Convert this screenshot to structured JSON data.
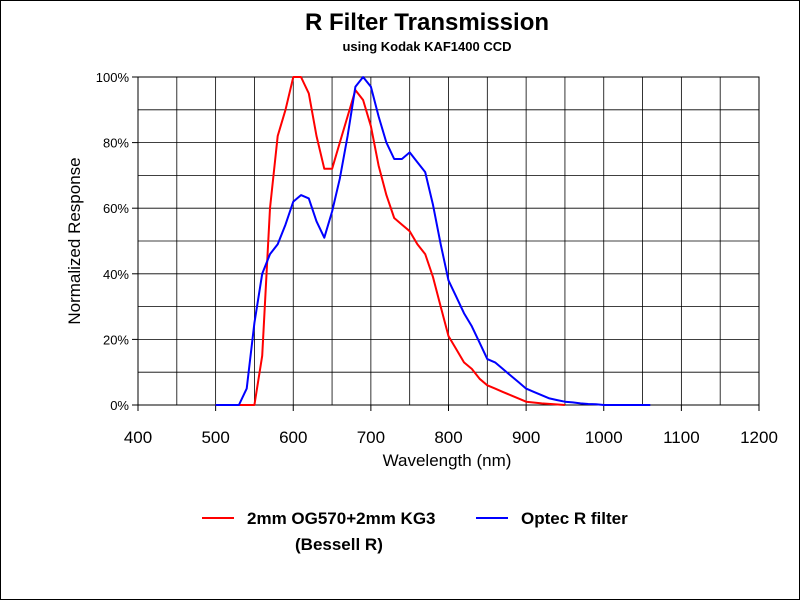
{
  "chart_data": {
    "type": "line",
    "title": "R Filter Transmission",
    "subtitle": "using Kodak KAF1400 CCD",
    "xlabel": "Wavelength (nm)",
    "ylabel": "Normalized Response",
    "xlim": [
      400,
      1200
    ],
    "ylim": [
      0,
      100
    ],
    "x_ticks": [
      400,
      500,
      600,
      700,
      800,
      900,
      1000,
      1100,
      1200
    ],
    "x_tick_labels": [
      "400",
      "500",
      "600",
      "700",
      "800",
      "900",
      "1000",
      "1100",
      "1200"
    ],
    "y_ticks": [
      0,
      20,
      40,
      60,
      80,
      100
    ],
    "y_tick_labels": [
      "0%",
      "20%",
      "40%",
      "60%",
      "80%",
      "100%"
    ],
    "grid": true,
    "legend_position": "bottom",
    "series": [
      {
        "name": "2mm OG570+2mm KG3",
        "name_line2": "(Bessell R)",
        "color": "#ff0000",
        "points": [
          [
            500,
            0
          ],
          [
            550,
            0
          ],
          [
            560,
            15
          ],
          [
            570,
            60
          ],
          [
            580,
            82
          ],
          [
            590,
            90
          ],
          [
            600,
            100
          ],
          [
            610,
            100
          ],
          [
            620,
            95
          ],
          [
            630,
            82
          ],
          [
            640,
            72
          ],
          [
            650,
            72
          ],
          [
            660,
            80
          ],
          [
            670,
            88
          ],
          [
            680,
            96
          ],
          [
            690,
            93
          ],
          [
            700,
            85
          ],
          [
            710,
            73
          ],
          [
            720,
            64
          ],
          [
            730,
            57
          ],
          [
            740,
            55
          ],
          [
            750,
            53
          ],
          [
            760,
            49
          ],
          [
            770,
            46
          ],
          [
            780,
            39
          ],
          [
            790,
            30
          ],
          [
            800,
            21
          ],
          [
            810,
            17
          ],
          [
            820,
            13
          ],
          [
            830,
            11
          ],
          [
            840,
            8
          ],
          [
            850,
            6
          ],
          [
            860,
            5
          ],
          [
            870,
            4
          ],
          [
            880,
            3
          ],
          [
            890,
            2
          ],
          [
            900,
            1
          ],
          [
            920,
            0.5
          ],
          [
            950,
            0
          ]
        ]
      },
      {
        "name": "Optec R filter",
        "color": "#0000ff",
        "points": [
          [
            500,
            0
          ],
          [
            530,
            0
          ],
          [
            540,
            5
          ],
          [
            550,
            25
          ],
          [
            560,
            40
          ],
          [
            570,
            46
          ],
          [
            580,
            49
          ],
          [
            590,
            55
          ],
          [
            600,
            62
          ],
          [
            610,
            64
          ],
          [
            620,
            63
          ],
          [
            630,
            56
          ],
          [
            640,
            51
          ],
          [
            650,
            59
          ],
          [
            660,
            69
          ],
          [
            670,
            82
          ],
          [
            680,
            97
          ],
          [
            690,
            100
          ],
          [
            700,
            97
          ],
          [
            710,
            88
          ],
          [
            720,
            80
          ],
          [
            730,
            75
          ],
          [
            740,
            75
          ],
          [
            750,
            77
          ],
          [
            760,
            74
          ],
          [
            770,
            71
          ],
          [
            780,
            61
          ],
          [
            790,
            49
          ],
          [
            800,
            38
          ],
          [
            810,
            33
          ],
          [
            820,
            28
          ],
          [
            830,
            24
          ],
          [
            840,
            19
          ],
          [
            850,
            14
          ],
          [
            860,
            13
          ],
          [
            870,
            11
          ],
          [
            880,
            9
          ],
          [
            890,
            7
          ],
          [
            900,
            5
          ],
          [
            910,
            4
          ],
          [
            920,
            3
          ],
          [
            930,
            2
          ],
          [
            940,
            1.5
          ],
          [
            950,
            1
          ],
          [
            960,
            0.8
          ],
          [
            970,
            0.5
          ],
          [
            980,
            0.3
          ],
          [
            990,
            0.2
          ],
          [
            1000,
            0
          ],
          [
            1060,
            0
          ]
        ]
      }
    ]
  }
}
